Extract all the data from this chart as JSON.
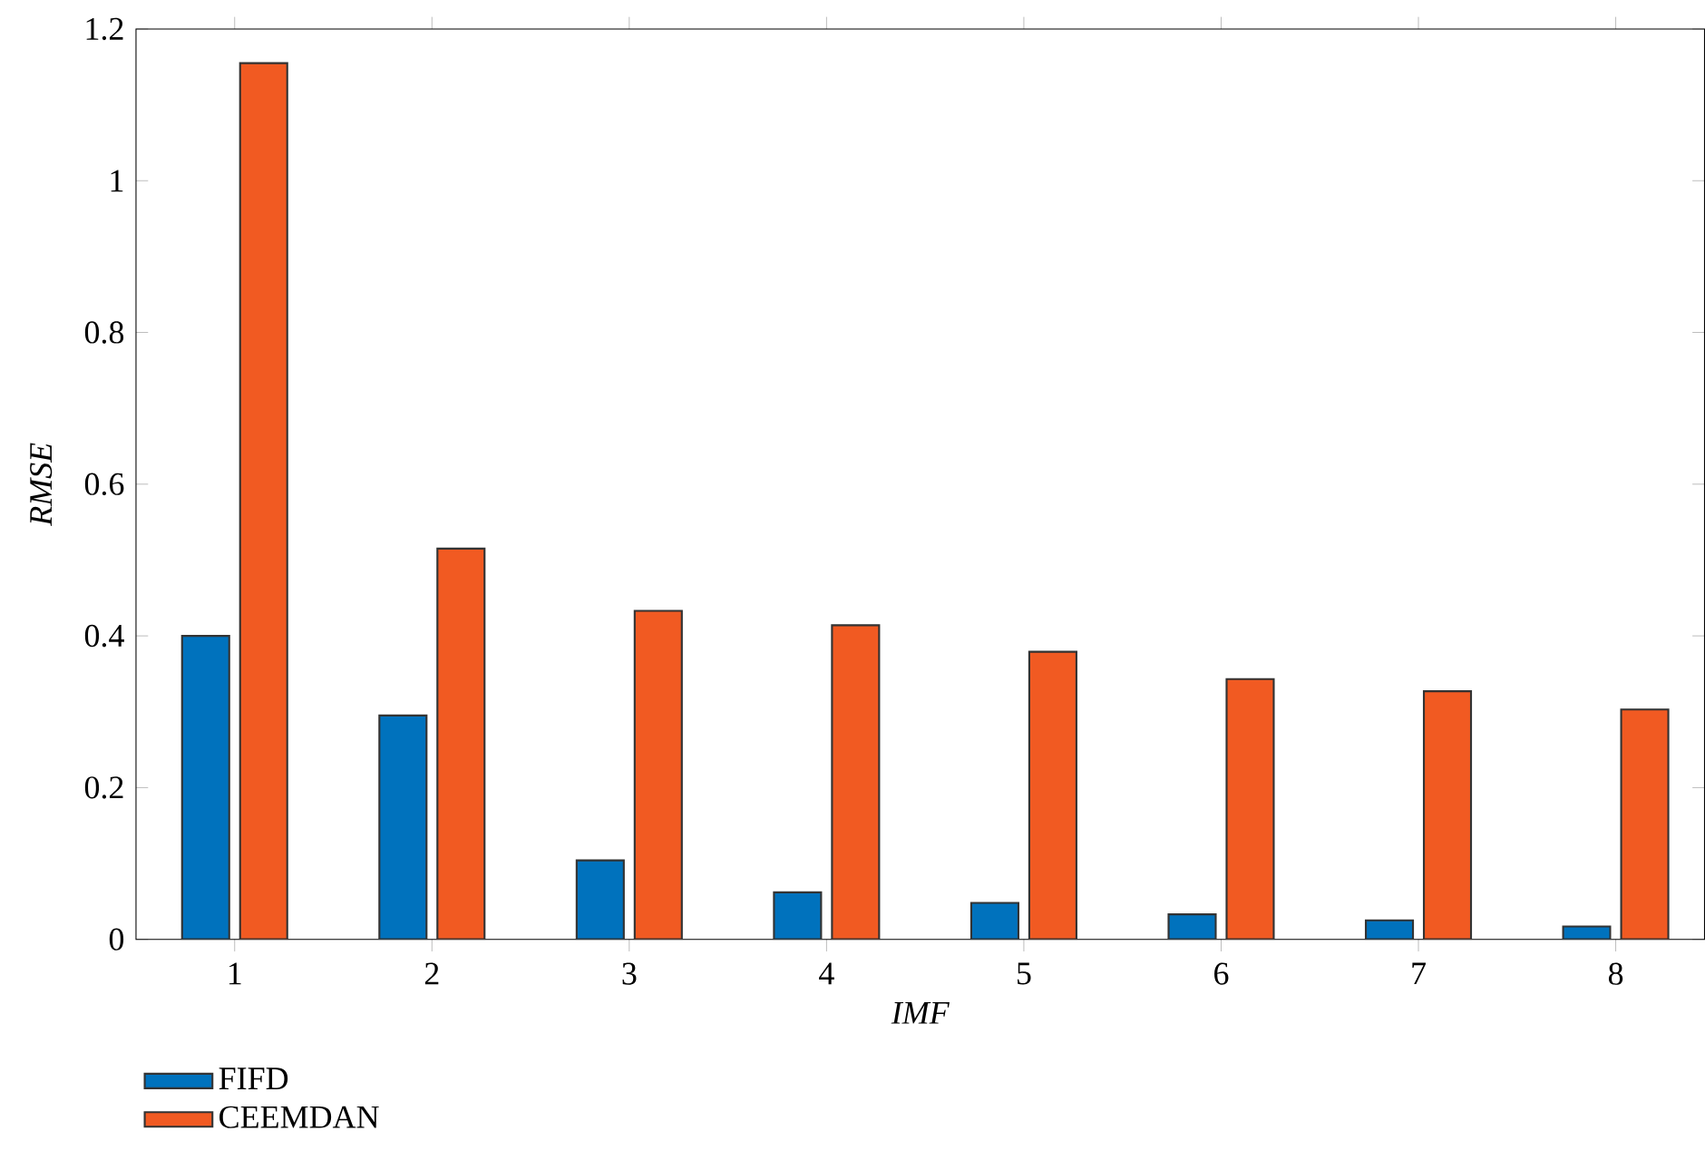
{
  "chart_data": {
    "type": "bar",
    "xlabel": "IMF",
    "ylabel": "RMSE",
    "categories": [
      "1",
      "2",
      "3",
      "4",
      "5",
      "6",
      "7",
      "8"
    ],
    "series": [
      {
        "name": "FIFD",
        "color": "#0072bd",
        "values": [
          0.4,
          0.295,
          0.104,
          0.062,
          0.048,
          0.033,
          0.025,
          0.017
        ]
      },
      {
        "name": "CEEMDAN",
        "color": "#f15a22",
        "values": [
          1.155,
          0.515,
          0.433,
          0.414,
          0.379,
          0.343,
          0.327,
          0.303
        ]
      }
    ],
    "ylim": [
      0,
      1.2
    ],
    "yticks": [
      0,
      0.2,
      0.4,
      0.6,
      0.8,
      1,
      1.2
    ],
    "legend": "bottom left",
    "grid": false
  }
}
